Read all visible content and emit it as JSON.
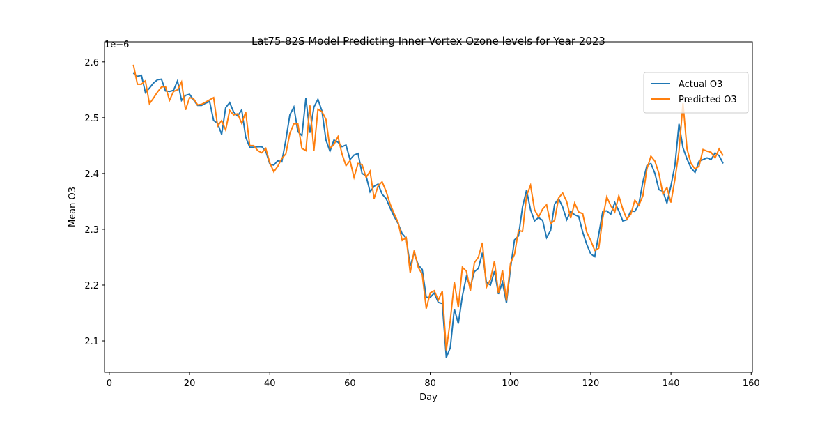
{
  "chart_data": {
    "type": "line",
    "title": "Lat75-82S Model Predicting Inner Vortex Ozone levels for Year 2023",
    "xlabel": "Day",
    "ylabel": "Mean O3",
    "y_offset_label": "1e−6",
    "x": [
      6,
      7,
      8,
      9,
      10,
      11,
      12,
      13,
      14,
      15,
      16,
      17,
      18,
      19,
      20,
      21,
      22,
      23,
      24,
      25,
      26,
      27,
      28,
      29,
      30,
      31,
      32,
      33,
      34,
      35,
      36,
      37,
      38,
      39,
      40,
      41,
      42,
      43,
      44,
      45,
      46,
      47,
      48,
      49,
      50,
      51,
      52,
      53,
      54,
      55,
      56,
      57,
      58,
      59,
      60,
      61,
      62,
      63,
      64,
      65,
      66,
      67,
      68,
      69,
      70,
      71,
      72,
      73,
      74,
      75,
      76,
      77,
      78,
      79,
      80,
      81,
      82,
      83,
      84,
      85,
      86,
      87,
      88,
      89,
      90,
      91,
      92,
      93,
      94,
      95,
      96,
      97,
      98,
      99,
      100,
      101,
      102,
      103,
      104,
      105,
      106,
      107,
      108,
      109,
      110,
      111,
      112,
      113,
      114,
      115,
      116,
      117,
      118,
      119,
      120,
      121,
      122,
      123,
      124,
      125,
      126,
      127,
      128,
      129,
      130,
      131,
      132,
      133,
      134,
      135,
      136,
      137,
      138,
      139,
      140,
      141,
      142,
      143,
      144,
      145,
      146,
      147,
      148,
      149,
      150,
      151,
      152,
      153
    ],
    "series": [
      {
        "name": "Actual O3",
        "color": "#1f77b4",
        "values": [
          2.58,
          2.574,
          2.576,
          2.545,
          2.553,
          2.562,
          2.568,
          2.569,
          2.548,
          2.547,
          2.549,
          2.566,
          2.531,
          2.54,
          2.542,
          2.532,
          2.522,
          2.522,
          2.526,
          2.529,
          2.495,
          2.49,
          2.47,
          2.518,
          2.527,
          2.51,
          2.503,
          2.514,
          2.465,
          2.447,
          2.447,
          2.448,
          2.448,
          2.44,
          2.417,
          2.415,
          2.423,
          2.421,
          2.46,
          2.505,
          2.519,
          2.475,
          2.468,
          2.535,
          2.473,
          2.519,
          2.533,
          2.512,
          2.46,
          2.44,
          2.46,
          2.456,
          2.448,
          2.451,
          2.425,
          2.433,
          2.436,
          2.4,
          2.396,
          2.367,
          2.377,
          2.381,
          2.363,
          2.355,
          2.338,
          2.323,
          2.31,
          2.292,
          2.284,
          2.234,
          2.258,
          2.236,
          2.228,
          2.178,
          2.178,
          2.186,
          2.169,
          2.167,
          2.07,
          2.088,
          2.157,
          2.131,
          2.18,
          2.215,
          2.197,
          2.224,
          2.23,
          2.258,
          2.205,
          2.2,
          2.225,
          2.184,
          2.205,
          2.168,
          2.23,
          2.281,
          2.288,
          2.34,
          2.37,
          2.335,
          2.315,
          2.321,
          2.316,
          2.285,
          2.298,
          2.345,
          2.355,
          2.34,
          2.317,
          2.332,
          2.326,
          2.323,
          2.295,
          2.273,
          2.256,
          2.251,
          2.291,
          2.332,
          2.333,
          2.327,
          2.348,
          2.333,
          2.315,
          2.317,
          2.333,
          2.332,
          2.345,
          2.385,
          2.414,
          2.418,
          2.4,
          2.371,
          2.368,
          2.347,
          2.378,
          2.415,
          2.489,
          2.446,
          2.426,
          2.41,
          2.402,
          2.422,
          2.425,
          2.428,
          2.425,
          2.437,
          2.432,
          2.418
        ]
      },
      {
        "name": "Predicted O3",
        "color": "#ff7f0e",
        "values": [
          2.595,
          2.56,
          2.56,
          2.566,
          2.525,
          2.535,
          2.546,
          2.555,
          2.556,
          2.531,
          2.547,
          2.55,
          2.564,
          2.514,
          2.536,
          2.534,
          2.523,
          2.524,
          2.528,
          2.532,
          2.536,
          2.485,
          2.495,
          2.478,
          2.513,
          2.505,
          2.507,
          2.49,
          2.51,
          2.45,
          2.45,
          2.441,
          2.437,
          2.445,
          2.419,
          2.403,
          2.413,
          2.427,
          2.435,
          2.472,
          2.489,
          2.489,
          2.445,
          2.441,
          2.522,
          2.441,
          2.515,
          2.511,
          2.497,
          2.445,
          2.452,
          2.466,
          2.435,
          2.414,
          2.423,
          2.393,
          2.418,
          2.416,
          2.393,
          2.404,
          2.355,
          2.378,
          2.385,
          2.368,
          2.345,
          2.328,
          2.312,
          2.28,
          2.285,
          2.222,
          2.262,
          2.232,
          2.219,
          2.158,
          2.186,
          2.19,
          2.173,
          2.189,
          2.083,
          2.137,
          2.205,
          2.16,
          2.232,
          2.225,
          2.19,
          2.24,
          2.25,
          2.276,
          2.196,
          2.21,
          2.243,
          2.186,
          2.227,
          2.172,
          2.239,
          2.255,
          2.298,
          2.296,
          2.36,
          2.379,
          2.335,
          2.322,
          2.336,
          2.344,
          2.31,
          2.316,
          2.356,
          2.365,
          2.35,
          2.32,
          2.347,
          2.331,
          2.328,
          2.295,
          2.28,
          2.262,
          2.266,
          2.32,
          2.358,
          2.342,
          2.331,
          2.36,
          2.336,
          2.318,
          2.327,
          2.352,
          2.343,
          2.36,
          2.408,
          2.431,
          2.422,
          2.4,
          2.363,
          2.375,
          2.348,
          2.39,
          2.44,
          2.526,
          2.444,
          2.418,
          2.408,
          2.413,
          2.443,
          2.44,
          2.438,
          2.428,
          2.444,
          2.432
        ]
      }
    ],
    "xlim": [
      -1.2,
      160.3
    ],
    "xticks": [
      0,
      20,
      40,
      60,
      80,
      100,
      120,
      140,
      160
    ],
    "ylim": [
      2.0438,
      2.636
    ],
    "yticks": [
      2.1,
      2.2,
      2.3,
      2.4,
      2.5,
      2.6
    ],
    "legend": "upper right",
    "grid": false
  }
}
